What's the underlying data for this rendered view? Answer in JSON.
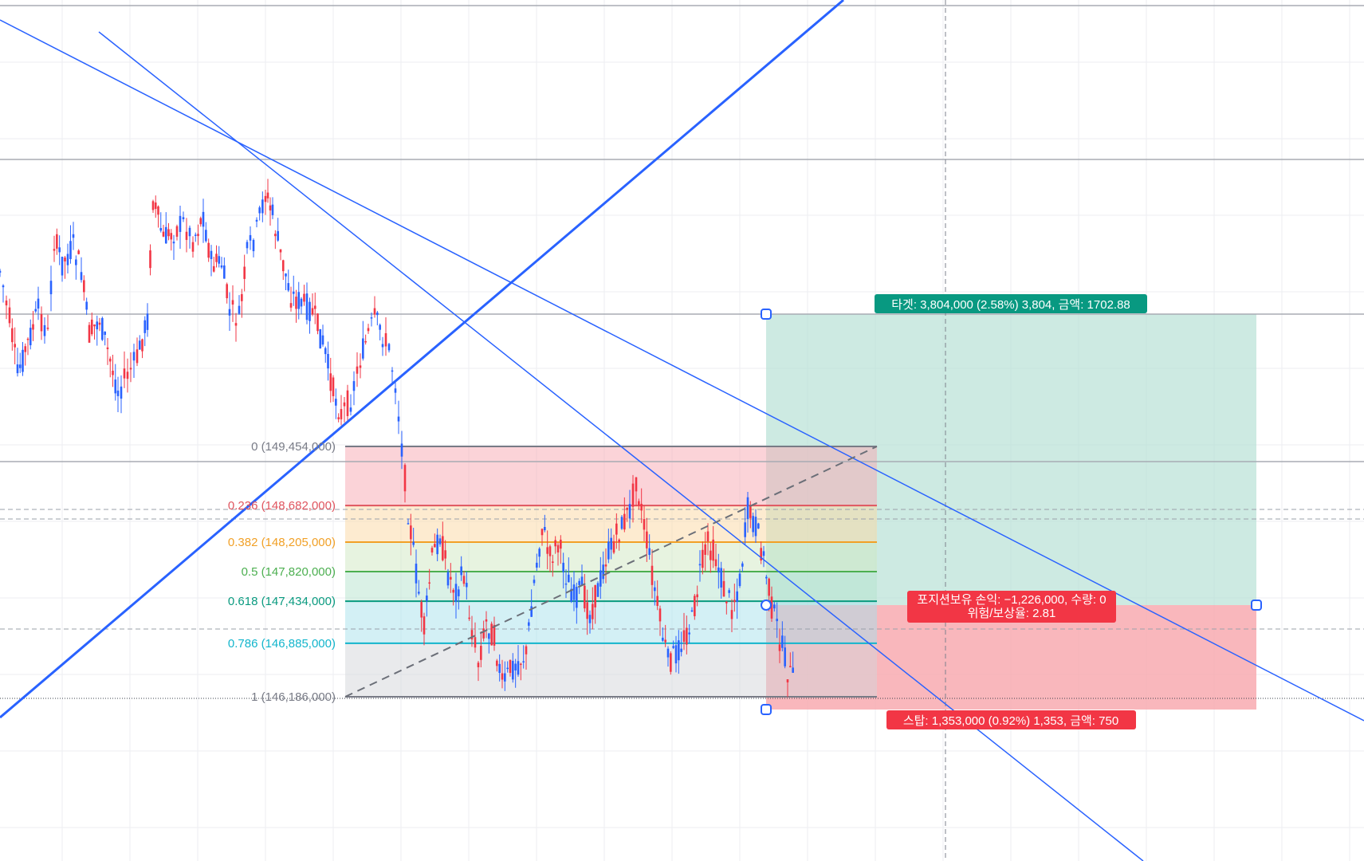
{
  "fib_levels": [
    {
      "ratio": "0",
      "price": "149,454,000",
      "line_color": "#787b86",
      "fill_color": "#f7a8b1",
      "text_color": "#787b86"
    },
    {
      "ratio": "0.236",
      "price": "148,682,000",
      "line_color": "#e0555f",
      "fill_color": "#fbd7a2",
      "text_color": "#e0555f"
    },
    {
      "ratio": "0.382",
      "price": "148,205,000",
      "line_color": "#f1a026",
      "fill_color": "#cfe7c2",
      "text_color": "#f1a026"
    },
    {
      "ratio": "0.5",
      "price": "147,820,000",
      "line_color": "#4caf50",
      "fill_color": "#b6e3cd",
      "text_color": "#4caf50"
    },
    {
      "ratio": "0.618",
      "price": "147,434,000",
      "line_color": "#099a7f",
      "fill_color": "#a8e2ec",
      "text_color": "#099a7f"
    },
    {
      "ratio": "0.786",
      "price": "146,885,000",
      "line_color": "#12b5cc",
      "fill_color": "#d4d6d9",
      "text_color": "#12b5cc"
    },
    {
      "ratio": "1",
      "price": "146,186,000",
      "line_color": "#787b86",
      "fill_color": "",
      "text_color": "#787b86"
    }
  ],
  "position": {
    "target_label": "타겟: 3,804,000 (2.58%) 3,804, 금액: 1702.88",
    "stop_label": "스탑: 1,353,000 (0.92%) 1,353, 금액: 750",
    "pnl_line1": "포지션보유 손익: −1,226,000, 수량: 0",
    "pnl_line2": "위험/보상율: 2.81",
    "target_color": "#089981",
    "stop_color": "#f23645",
    "target_fill": "#b2dfd3",
    "stop_fill": "#f7a5ab"
  },
  "colors": {
    "candle_up": "#f23645",
    "candle_down": "#2962ff",
    "trendline": "#2962ff",
    "horizontal_line": "#a8abb3",
    "grid": "#eceef2"
  }
}
